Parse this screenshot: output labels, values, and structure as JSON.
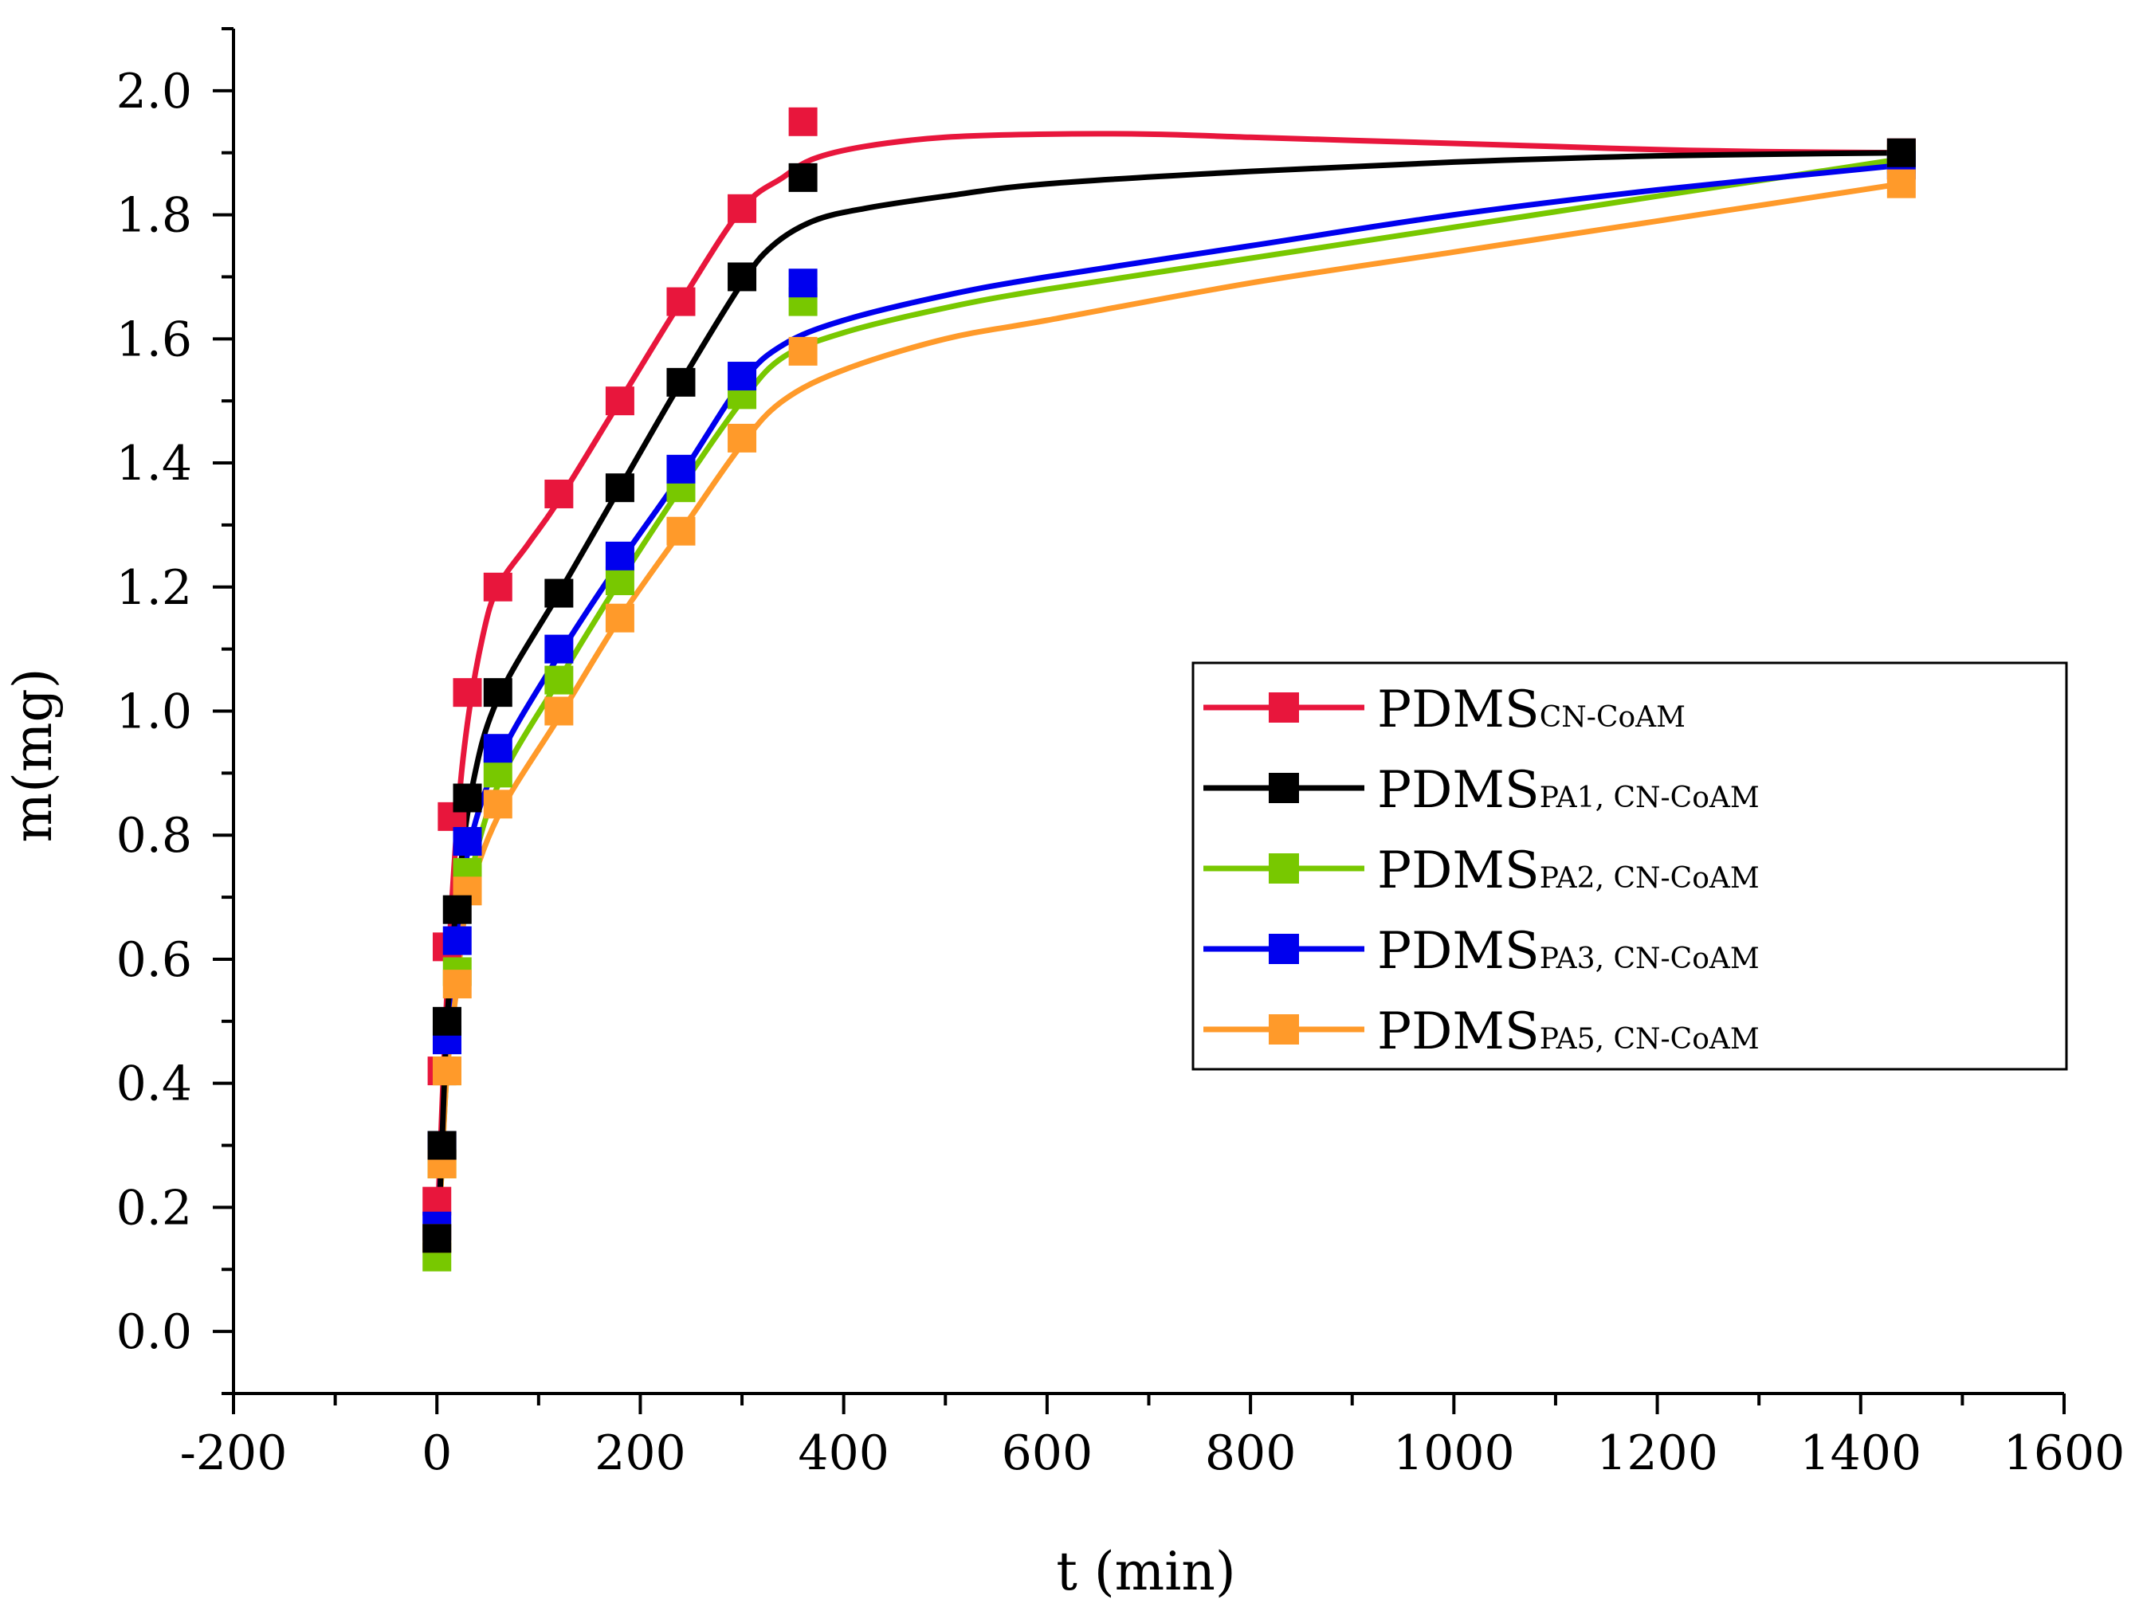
{
  "chart_data": {
    "type": "line",
    "title": "",
    "xlabel": "t (min)",
    "ylabel": "m(mg)",
    "xlim": [
      -200,
      1600
    ],
    "ylim": [
      -0.1,
      2.1
    ],
    "xticks": [
      -200,
      0,
      200,
      400,
      600,
      800,
      1000,
      1200,
      1400,
      1600
    ],
    "xtick_labels": [
      "-200",
      "0",
      "200",
      "400",
      "600",
      "800",
      "1000",
      "1200",
      "1400",
      "1600"
    ],
    "yticks": [
      0.0,
      0.2,
      0.4,
      0.6,
      0.8,
      1.0,
      1.2,
      1.4,
      1.6,
      1.8,
      2.0
    ],
    "ytick_labels": [
      "0.0",
      "0.2",
      "0.4",
      "0.6",
      "0.8",
      "1.0",
      "1.2",
      "1.4",
      "1.6",
      "1.8",
      "2.0"
    ],
    "grid": false,
    "legend_position": "right-middle",
    "series": [
      {
        "name": "PDMS",
        "subscript": "CN-CoAM",
        "color": "#e8163c",
        "points": [
          [
            0,
            0.21
          ],
          [
            5,
            0.42
          ],
          [
            10,
            0.62
          ],
          [
            15,
            0.83
          ],
          [
            30,
            1.03
          ],
          [
            60,
            1.2
          ],
          [
            120,
            1.35
          ],
          [
            180,
            1.5
          ],
          [
            240,
            1.66
          ],
          [
            300,
            1.81
          ],
          [
            360,
            1.95
          ],
          [
            1440,
            1.9
          ]
        ],
        "fit": [
          [
            0,
            0.15
          ],
          [
            10,
            0.55
          ],
          [
            20,
            0.82
          ],
          [
            30,
            0.98
          ],
          [
            45,
            1.12
          ],
          [
            60,
            1.2
          ],
          [
            90,
            1.27
          ],
          [
            120,
            1.34
          ],
          [
            180,
            1.5
          ],
          [
            240,
            1.66
          ],
          [
            300,
            1.81
          ],
          [
            340,
            1.86
          ],
          [
            370,
            1.89
          ],
          [
            420,
            1.91
          ],
          [
            500,
            1.925
          ],
          [
            600,
            1.93
          ],
          [
            700,
            1.93
          ],
          [
            800,
            1.925
          ],
          [
            900,
            1.92
          ],
          [
            1000,
            1.915
          ],
          [
            1100,
            1.91
          ],
          [
            1200,
            1.905
          ],
          [
            1300,
            1.902
          ],
          [
            1440,
            1.9
          ]
        ]
      },
      {
        "name": "PDMS",
        "subscript": "PA1, CN-CoAM",
        "color": "#000000",
        "points": [
          [
            0,
            0.15
          ],
          [
            5,
            0.3
          ],
          [
            10,
            0.5
          ],
          [
            20,
            0.68
          ],
          [
            30,
            0.86
          ],
          [
            60,
            1.03
          ],
          [
            120,
            1.19
          ],
          [
            180,
            1.36
          ],
          [
            240,
            1.53
          ],
          [
            300,
            1.7
          ],
          [
            360,
            1.86
          ],
          [
            1440,
            1.9
          ]
        ],
        "fit": [
          [
            0,
            0.1
          ],
          [
            5,
            0.3
          ],
          [
            10,
            0.5
          ],
          [
            20,
            0.7
          ],
          [
            35,
            0.88
          ],
          [
            60,
            1.02
          ],
          [
            120,
            1.19
          ],
          [
            180,
            1.36
          ],
          [
            240,
            1.53
          ],
          [
            300,
            1.69
          ],
          [
            330,
            1.75
          ],
          [
            370,
            1.79
          ],
          [
            420,
            1.81
          ],
          [
            500,
            1.83
          ],
          [
            600,
            1.85
          ],
          [
            800,
            1.87
          ],
          [
            1000,
            1.885
          ],
          [
            1200,
            1.895
          ],
          [
            1440,
            1.9
          ]
        ]
      },
      {
        "name": "PDMS",
        "subscript": "PA2, CN-CoAM",
        "color": "#78c800",
        "points": [
          [
            0,
            0.12
          ],
          [
            5,
            0.27
          ],
          [
            10,
            0.42
          ],
          [
            20,
            0.58
          ],
          [
            30,
            0.74
          ],
          [
            60,
            0.9
          ],
          [
            120,
            1.05
          ],
          [
            180,
            1.21
          ],
          [
            240,
            1.36
          ],
          [
            300,
            1.51
          ],
          [
            360,
            1.66
          ],
          [
            1440,
            1.89
          ]
        ],
        "fit": [
          [
            0,
            0.1
          ],
          [
            5,
            0.27
          ],
          [
            10,
            0.42
          ],
          [
            20,
            0.58
          ],
          [
            30,
            0.71
          ],
          [
            60,
            0.88
          ],
          [
            120,
            1.05
          ],
          [
            180,
            1.21
          ],
          [
            240,
            1.36
          ],
          [
            300,
            1.5
          ],
          [
            340,
            1.57
          ],
          [
            400,
            1.61
          ],
          [
            500,
            1.65
          ],
          [
            600,
            1.68
          ],
          [
            800,
            1.73
          ],
          [
            1000,
            1.78
          ],
          [
            1200,
            1.83
          ],
          [
            1440,
            1.89
          ]
        ]
      },
      {
        "name": "PDMS",
        "subscript": "PA3, CN-CoAM",
        "color": "#0000ee",
        "points": [
          [
            0,
            0.17
          ],
          [
            5,
            0.3
          ],
          [
            10,
            0.47
          ],
          [
            20,
            0.63
          ],
          [
            30,
            0.79
          ],
          [
            60,
            0.94
          ],
          [
            120,
            1.1
          ],
          [
            180,
            1.25
          ],
          [
            240,
            1.39
          ],
          [
            300,
            1.54
          ],
          [
            360,
            1.69
          ],
          [
            1440,
            1.88
          ]
        ],
        "fit": [
          [
            0,
            0.12
          ],
          [
            5,
            0.3
          ],
          [
            10,
            0.47
          ],
          [
            20,
            0.63
          ],
          [
            30,
            0.77
          ],
          [
            60,
            0.92
          ],
          [
            120,
            1.09
          ],
          [
            180,
            1.24
          ],
          [
            240,
            1.38
          ],
          [
            300,
            1.53
          ],
          [
            340,
            1.59
          ],
          [
            400,
            1.63
          ],
          [
            500,
            1.67
          ],
          [
            600,
            1.7
          ],
          [
            800,
            1.75
          ],
          [
            1000,
            1.8
          ],
          [
            1200,
            1.84
          ],
          [
            1440,
            1.88
          ]
        ]
      },
      {
        "name": "PDMS",
        "subscript": "PA5, CN-CoAM",
        "color": "#ff9a2a",
        "points": [
          [
            0,
            0.15
          ],
          [
            5,
            0.27
          ],
          [
            10,
            0.42
          ],
          [
            20,
            0.56
          ],
          [
            30,
            0.71
          ],
          [
            60,
            0.85
          ],
          [
            120,
            1.0
          ],
          [
            180,
            1.15
          ],
          [
            240,
            1.29
          ],
          [
            300,
            1.44
          ],
          [
            360,
            1.58
          ],
          [
            1440,
            1.85
          ]
        ],
        "fit": [
          [
            0,
            0.1
          ],
          [
            5,
            0.27
          ],
          [
            10,
            0.42
          ],
          [
            20,
            0.56
          ],
          [
            30,
            0.69
          ],
          [
            60,
            0.83
          ],
          [
            120,
            0.99
          ],
          [
            180,
            1.15
          ],
          [
            240,
            1.29
          ],
          [
            300,
            1.43
          ],
          [
            340,
            1.5
          ],
          [
            400,
            1.55
          ],
          [
            500,
            1.6
          ],
          [
            600,
            1.63
          ],
          [
            800,
            1.69
          ],
          [
            1000,
            1.74
          ],
          [
            1200,
            1.79
          ],
          [
            1440,
            1.85
          ]
        ]
      }
    ]
  }
}
